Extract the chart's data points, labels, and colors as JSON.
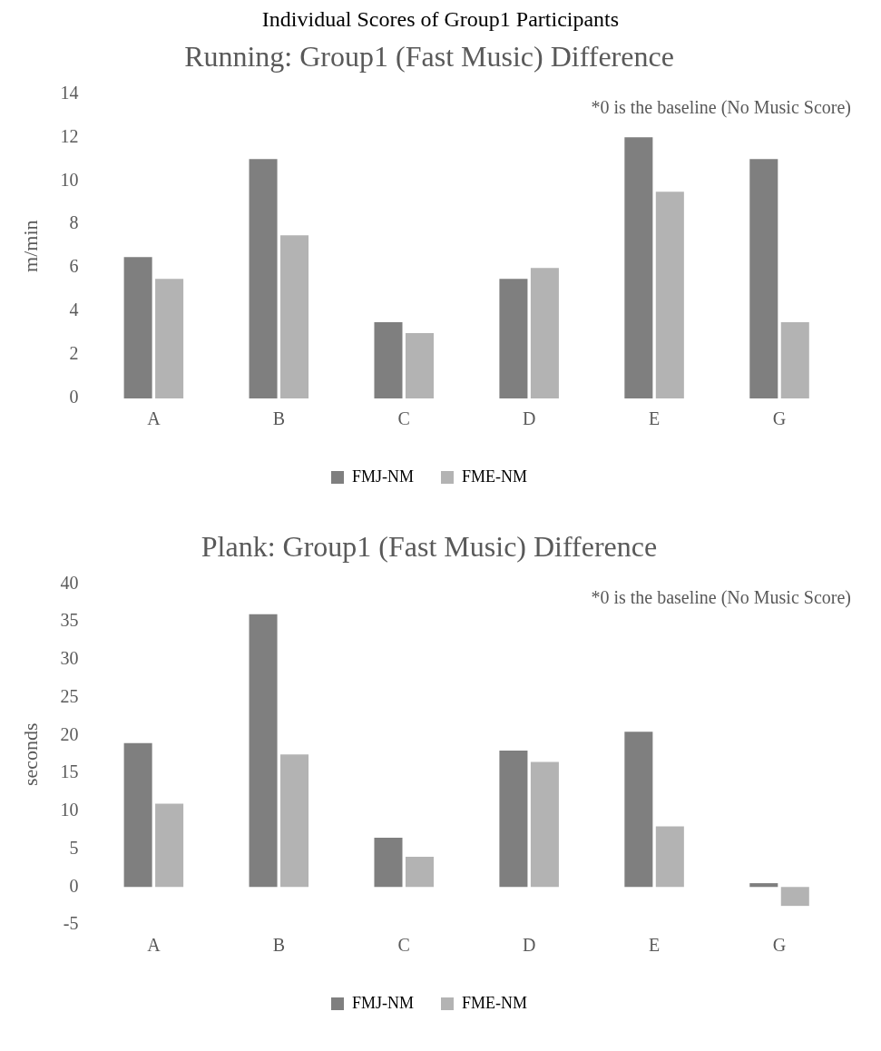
{
  "chart_data": [
    {
      "type": "bar",
      "title": "Individual Scores of Group1 Participants",
      "subtitle": "Running: Group1 (Fast Music) Difference",
      "ylabel": "m/min",
      "categories": [
        "A",
        "B",
        "C",
        "D",
        "E",
        "G"
      ],
      "series": [
        {
          "name": "FMJ-NM",
          "color": "#7f7f7f",
          "values": [
            6.5,
            11,
            3.5,
            5.5,
            12,
            11
          ]
        },
        {
          "name": "FME-NM",
          "color": "#b3b3b3",
          "values": [
            5.5,
            7.5,
            3,
            6,
            9.5,
            3.5
          ]
        }
      ],
      "ylim": [
        0,
        14
      ],
      "yticks": [
        0,
        2,
        4,
        6,
        8,
        10,
        12,
        14
      ],
      "grid": false,
      "legend": "bottom",
      "annotations": [
        "*0 is the baseline (No Music Score)"
      ]
    },
    {
      "type": "bar",
      "title": "Plank: Group1 (Fast Music) Difference",
      "ylabel": "seconds",
      "categories": [
        "A",
        "B",
        "C",
        "D",
        "E",
        "G"
      ],
      "series": [
        {
          "name": "FMJ-NM",
          "color": "#7f7f7f",
          "values": [
            19,
            36,
            6.5,
            18,
            20.5,
            0.5
          ]
        },
        {
          "name": "FME-NM",
          "color": "#b3b3b3",
          "values": [
            11,
            17.5,
            4,
            16.5,
            8,
            -2.5
          ]
        }
      ],
      "ylim": [
        -5,
        40
      ],
      "yticks": [
        -5,
        0,
        5,
        10,
        15,
        20,
        25,
        30,
        35,
        40
      ],
      "grid": false,
      "legend": "bottom",
      "annotations": [
        "*0 is the baseline (No Music Score)"
      ]
    }
  ]
}
